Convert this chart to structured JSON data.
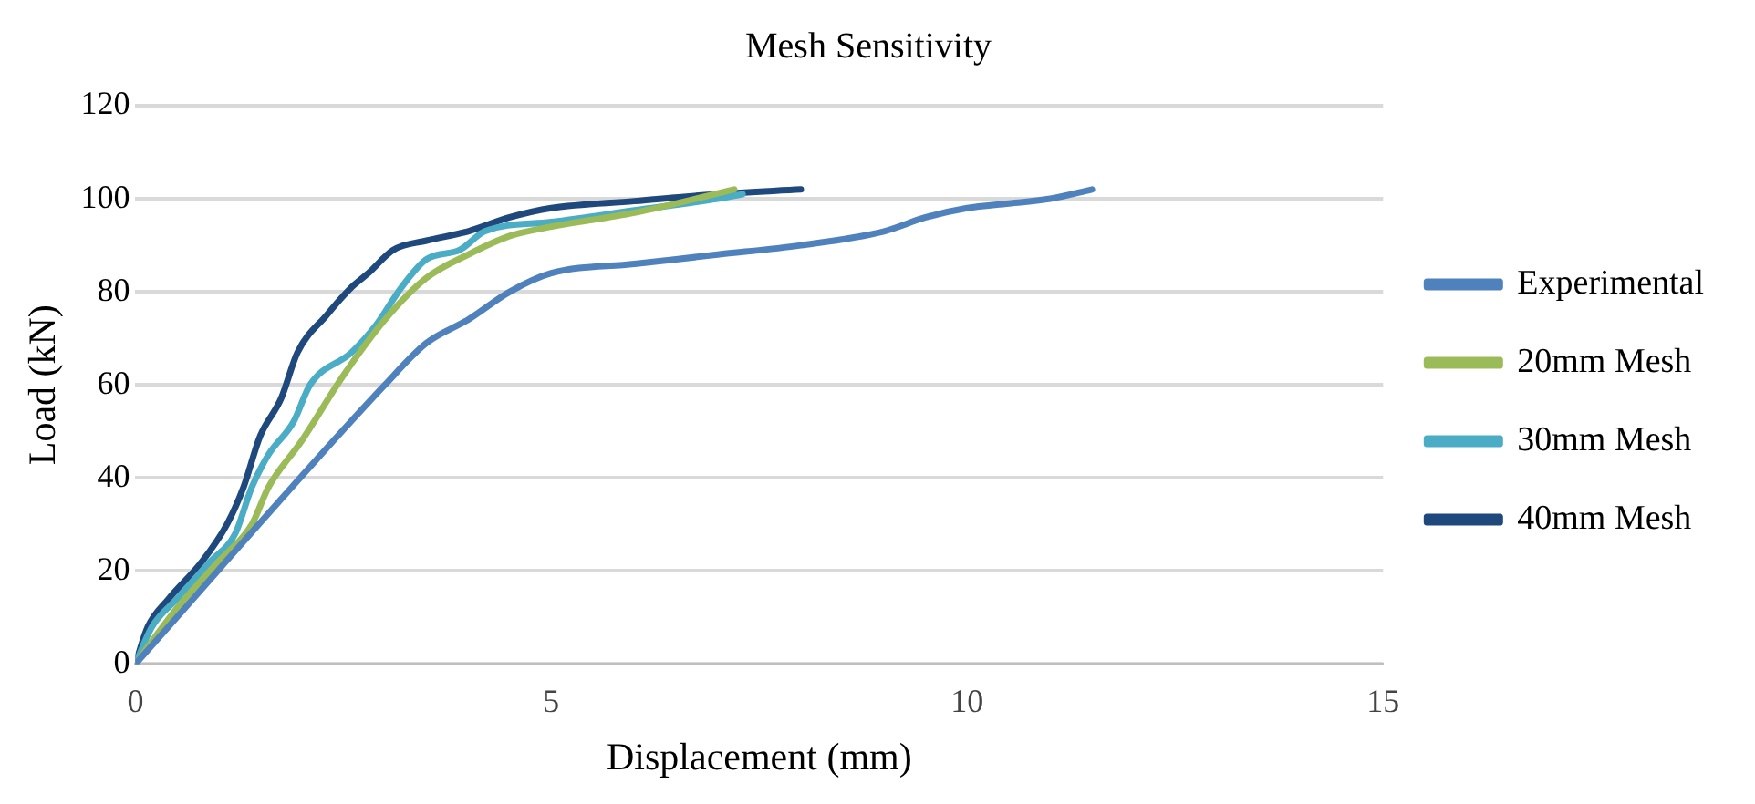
{
  "chart_data": {
    "type": "line",
    "title": "Mesh Sensitivity",
    "xlabel": "Displacement (mm)",
    "ylabel": "Load (kN)",
    "xlim": [
      0,
      15
    ],
    "xticks": [
      0,
      5,
      10,
      15
    ],
    "ylim": [
      0,
      120
    ],
    "yticks": [
      0,
      20,
      40,
      60,
      80,
      100,
      120
    ],
    "grid": "y",
    "legend": "right",
    "marker": "none",
    "line_style": "solid",
    "series": [
      {
        "name": "Experimental",
        "color": "#4f81bd",
        "x": [
          0,
          3,
          3.5,
          4,
          4.5,
          5,
          6,
          7,
          8,
          9,
          9.5,
          10,
          10.5,
          11,
          11.5
        ],
        "values": [
          0,
          60,
          69,
          74,
          80,
          84,
          86,
          88,
          90,
          93,
          96,
          98,
          99,
          100,
          102
        ]
      },
      {
        "name": "20mm Mesh",
        "color": "#9bbb59",
        "x": [
          0,
          0.5,
          1,
          1.4,
          1.6,
          2,
          2.5,
          3,
          3.5,
          4,
          4.5,
          5,
          6,
          7.2
        ],
        "values": [
          0,
          12,
          22,
          30,
          38,
          48,
          62,
          74,
          83,
          88,
          92,
          94,
          97,
          102
        ]
      },
      {
        "name": "30mm Mesh",
        "color": "#4bacc6",
        "x": [
          0,
          0.2,
          0.5,
          0.9,
          1.2,
          1.4,
          1.6,
          1.9,
          2.1,
          2.6,
          2.9,
          3.2,
          3.5,
          3.9,
          4.2,
          5,
          6,
          7,
          7.3
        ],
        "values": [
          0,
          8,
          14,
          22,
          28,
          38,
          45,
          52,
          60,
          67,
          73,
          81,
          87,
          89,
          93,
          95,
          97.5,
          100,
          101
        ]
      },
      {
        "name": "40mm Mesh",
        "color": "#1f497d",
        "x": [
          0,
          0.15,
          0.4,
          0.8,
          1.1,
          1.3,
          1.5,
          1.75,
          1.95,
          2.3,
          2.6,
          2.8,
          3.1,
          3.5,
          4,
          4.5,
          5,
          6,
          7,
          8
        ],
        "values": [
          0,
          8,
          14,
          22,
          30,
          38,
          49,
          57,
          67,
          75,
          81,
          84,
          89,
          91,
          93,
          96,
          98,
          99.5,
          101,
          102
        ]
      }
    ]
  }
}
